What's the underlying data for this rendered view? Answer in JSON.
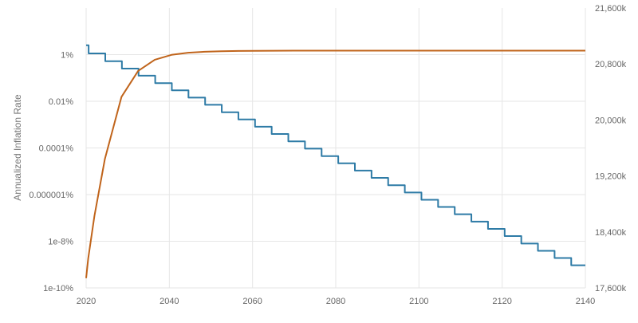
{
  "chart_data": {
    "type": "line",
    "title": "",
    "xlabel": "",
    "ylabel": "Annualized Inflation Rate",
    "y2label": "",
    "xlim": [
      2020,
      2140
    ],
    "ylim_log10": [
      -10,
      2
    ],
    "y2lim": [
      17600,
      21600
    ],
    "x_ticks": [
      "2020",
      "2040",
      "2060",
      "2080",
      "2100",
      "2120",
      "2140"
    ],
    "y_ticks": [
      {
        "label": "1%",
        "log10": 0
      },
      {
        "label": "0.01%",
        "log10": -2
      },
      {
        "label": "0.0001%",
        "log10": -4
      },
      {
        "label": "0.000001%",
        "log10": -6
      },
      {
        "label": "1e-8%",
        "log10": -8
      },
      {
        "label": "1e-10%",
        "log10": -10
      }
    ],
    "y2_ticks": [
      "21,600k",
      "20,800k",
      "20,000k",
      "19,200k",
      "18,400k",
      "17,600k"
    ],
    "y2_tick_values": [
      21600,
      20800,
      20000,
      19200,
      18400,
      17600
    ],
    "grid": true,
    "series": [
      {
        "axis": "left",
        "scale": "log",
        "color": "#2e7ba6",
        "step": true,
        "x": [
          2020,
          2020.6,
          2024.6,
          2028.6,
          2032.6,
          2036.6,
          2040.6,
          2044.6,
          2048.6,
          2052.6,
          2056.6,
          2060.6,
          2064.6,
          2068.6,
          2072.6,
          2076.6,
          2080.6,
          2084.6,
          2088.6,
          2092.6,
          2096.6,
          2100.6,
          2104.6,
          2108.6,
          2112.6,
          2116.6,
          2120.6,
          2124.6,
          2128.6,
          2132.6,
          2136.6,
          2140
        ],
        "log10_y": [
          0.4,
          0.05,
          -0.28,
          -0.6,
          -0.9,
          -1.22,
          -1.53,
          -1.84,
          -2.15,
          -2.47,
          -2.78,
          -3.09,
          -3.4,
          -3.72,
          -4.03,
          -4.35,
          -4.66,
          -4.97,
          -5.28,
          -5.6,
          -5.91,
          -6.22,
          -6.53,
          -6.84,
          -7.16,
          -7.47,
          -7.78,
          -8.1,
          -8.41,
          -8.72,
          -9.03,
          -9.03
        ]
      },
      {
        "axis": "right",
        "scale": "linear",
        "color": "#c0641b",
        "step": false,
        "x": [
          2020,
          2020.5,
          2022,
          2024.5,
          2028.5,
          2032.5,
          2036.5,
          2040.5,
          2044.5,
          2048.5,
          2052.5,
          2056.5,
          2060.5,
          2070,
          2080,
          2100,
          2120,
          2140
        ],
        "y": [
          17740,
          18020,
          18630,
          19440,
          20330,
          20700,
          20860,
          20930,
          20960,
          20975,
          20982,
          20986,
          20988,
          20990,
          20990,
          20990,
          20990,
          20990
        ]
      }
    ]
  }
}
